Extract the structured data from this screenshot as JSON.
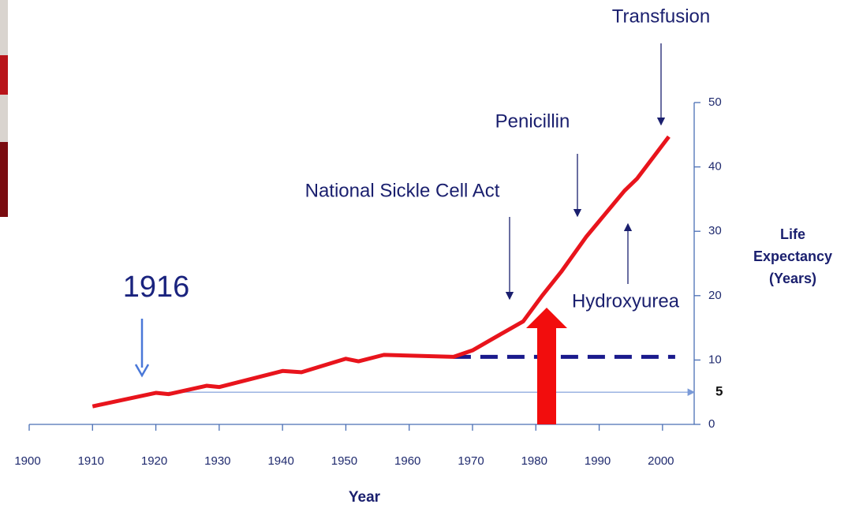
{
  "chart_data": {
    "type": "line",
    "x_label": "Year",
    "y_label": "Life Expectancy (Years)",
    "x": [
      1910,
      1920,
      1922,
      1928,
      1930,
      1940,
      1943,
      1948,
      1950,
      1952,
      1956,
      1967,
      1970,
      1973,
      1978,
      1981,
      1984,
      1988,
      1994,
      1996,
      2001
    ],
    "series": [
      {
        "color": "#e8141c",
        "values": [
          2.8,
          4.9,
          4.7,
          6.0,
          5.8,
          8.3,
          8.1,
          9.6,
          10.2,
          9.8,
          10.8,
          10.5,
          11.5,
          13.2,
          16,
          20,
          23.7,
          29.2,
          36.3,
          38.2,
          44.7
        ]
      }
    ],
    "reference_lines": [
      {
        "value": 10.5,
        "x": [
          1967,
          2002
        ],
        "color": "#1a1a8c",
        "dashed": true
      },
      {
        "value": 5,
        "x": [
          1922,
          2005
        ],
        "color": "#7a9ad8",
        "dashed": false
      }
    ],
    "annotations": [
      "1916",
      "National Sickle Cell Act",
      "Penicillin",
      "Transfusion",
      "Hydroxyurea"
    ],
    "xlim": [
      1900,
      2005
    ],
    "xticks": [
      1900,
      1910,
      1920,
      1930,
      1940,
      1950,
      1960,
      1970,
      1980,
      1990,
      2000
    ],
    "ylim": [
      0,
      50
    ],
    "yticks": [
      0,
      10,
      20,
      30,
      40,
      50
    ]
  }
}
